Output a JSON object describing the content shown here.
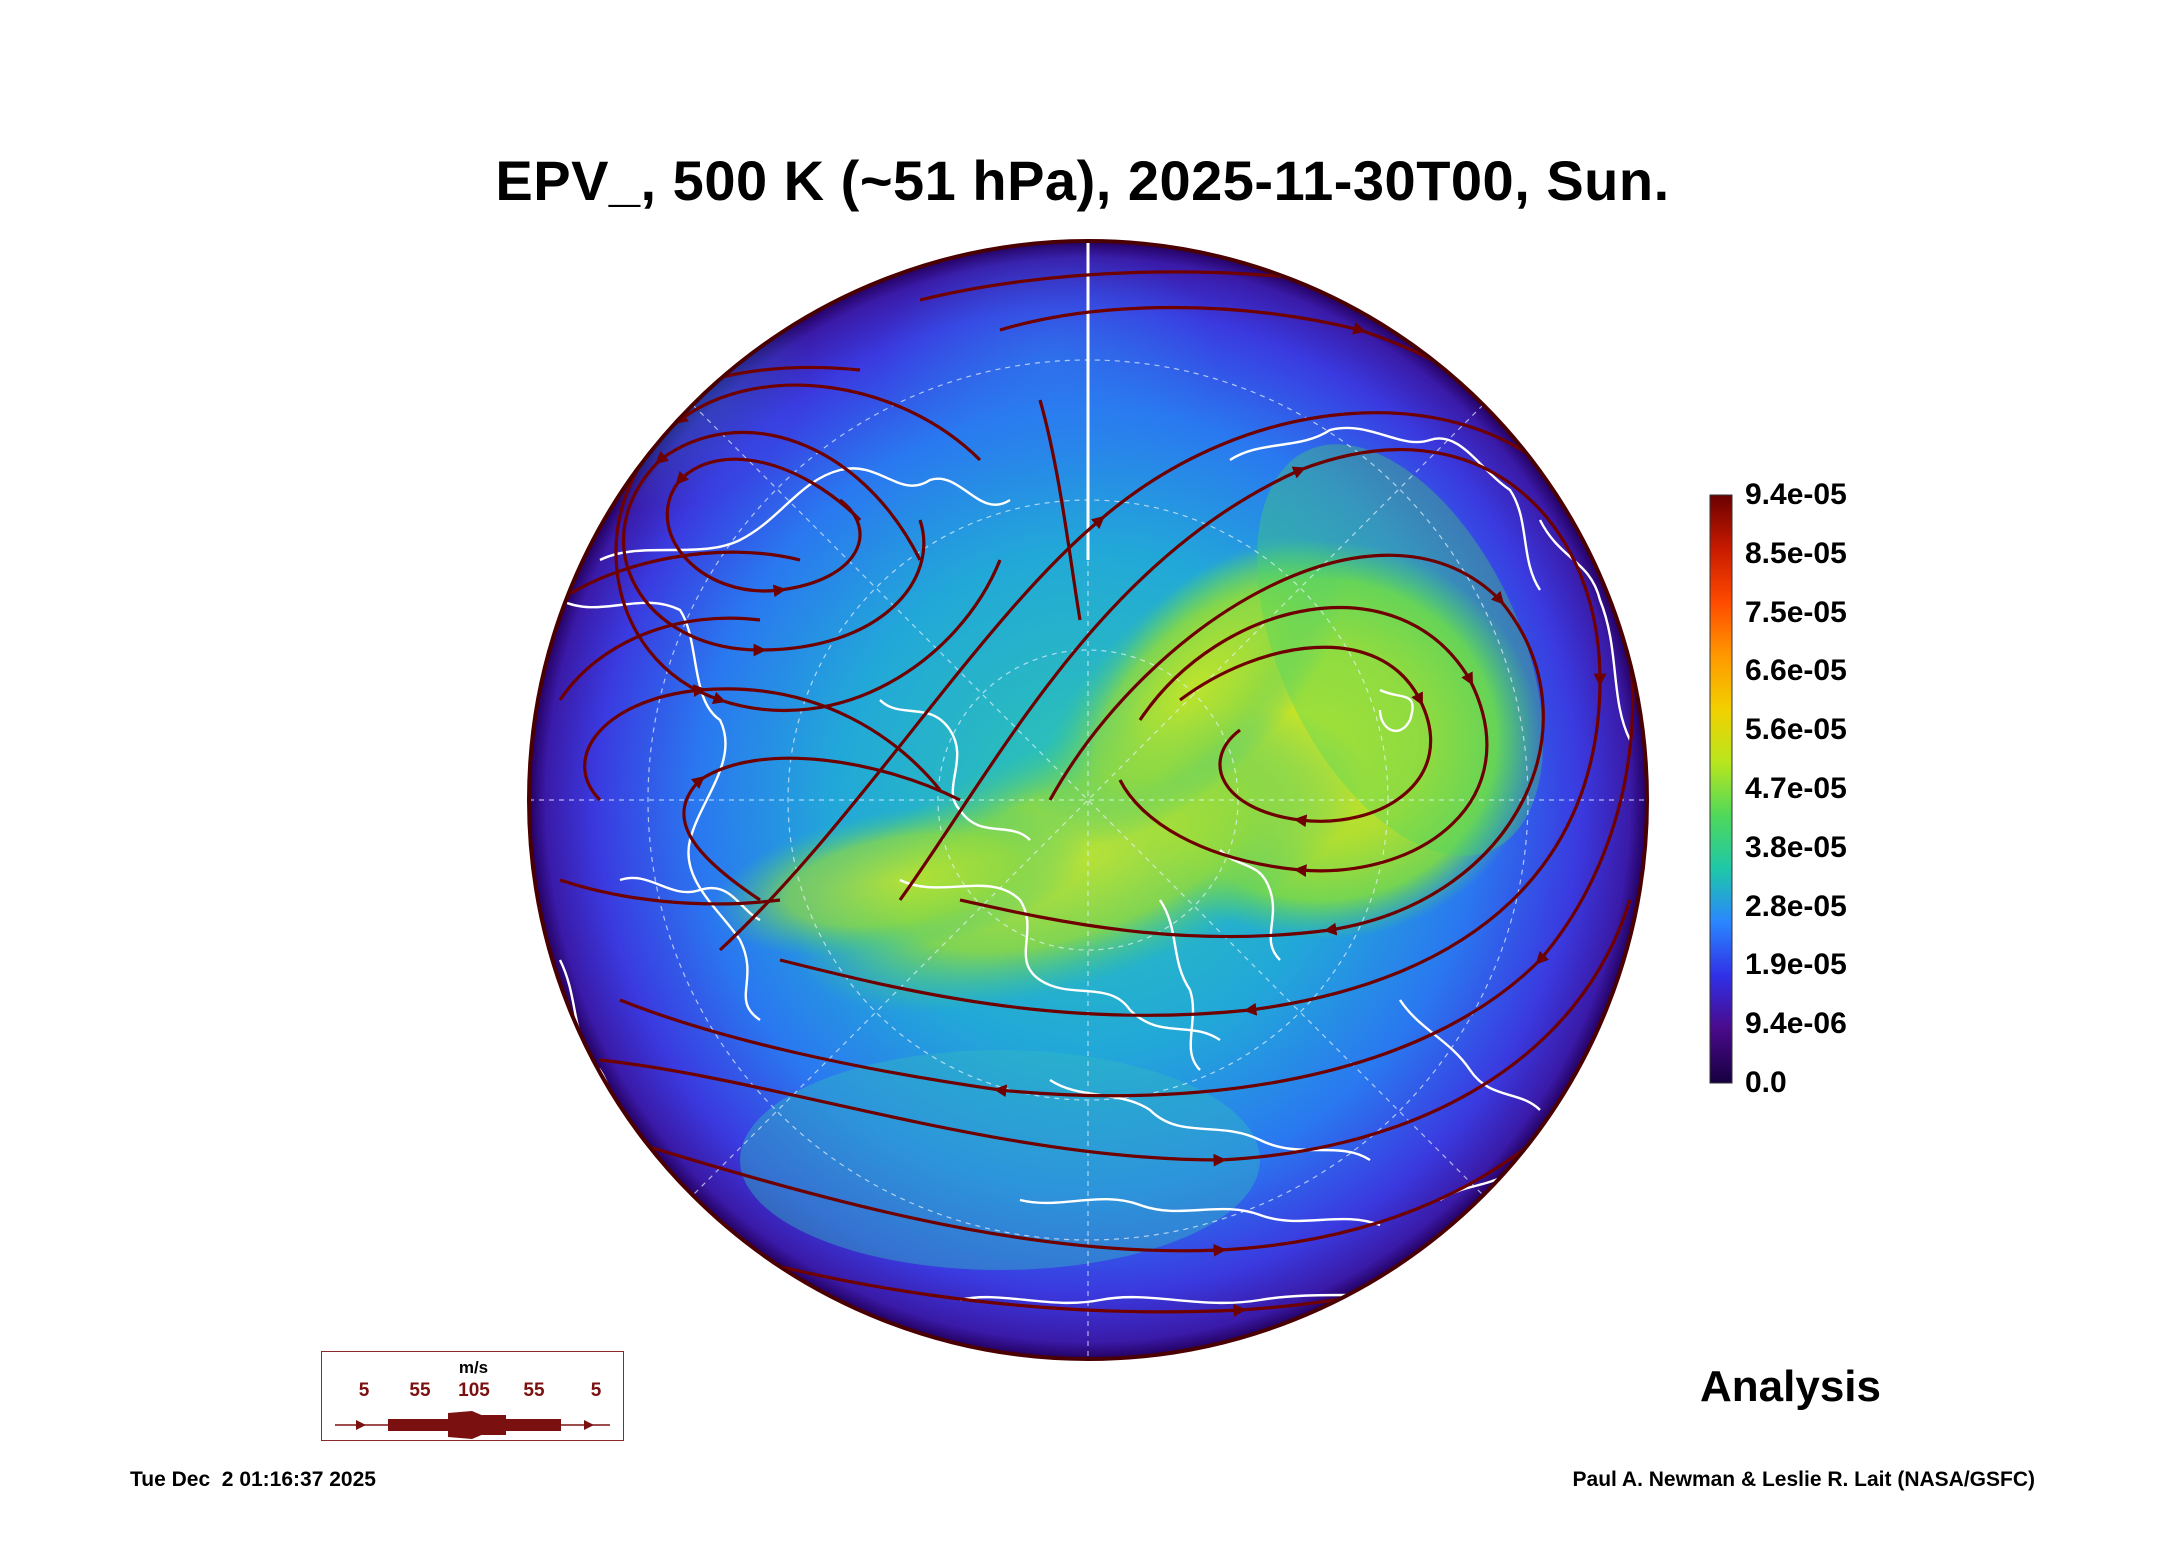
{
  "title": "EPV_, 500 K (~51 hPa), 2025-11-30T00, Sun.",
  "colorbar": {
    "labels": [
      "9.4e-05",
      "8.5e-05",
      "7.5e-05",
      "6.6e-05",
      "5.6e-05",
      "4.7e-05",
      "3.8e-05",
      "2.8e-05",
      "1.9e-05",
      "9.4e-06",
      "0.0"
    ],
    "colors": [
      "#6a0000",
      "#c81a00",
      "#ff4a00",
      "#ff9800",
      "#f2d000",
      "#b8e61e",
      "#4fd85a",
      "#1ec8a8",
      "#2a86ff",
      "#3030e6",
      "#4a0a8a",
      "#160040"
    ]
  },
  "wind_legend": {
    "unit": "m/s",
    "values": [
      "5",
      "55",
      "105",
      "55",
      "5"
    ],
    "color": "#7a1010"
  },
  "analysis_label": "Analysis",
  "footer": {
    "timestamp": "Tue Dec  2 01:16:37 2025",
    "credit": "Paul A. Newman & Leslie R. Lait (NASA/GSFC)"
  },
  "map": {
    "projection": "north-polar orthographic",
    "field": "EPV",
    "overlay": [
      "streamlines",
      "coastlines",
      "lat-lon grid"
    ]
  }
}
